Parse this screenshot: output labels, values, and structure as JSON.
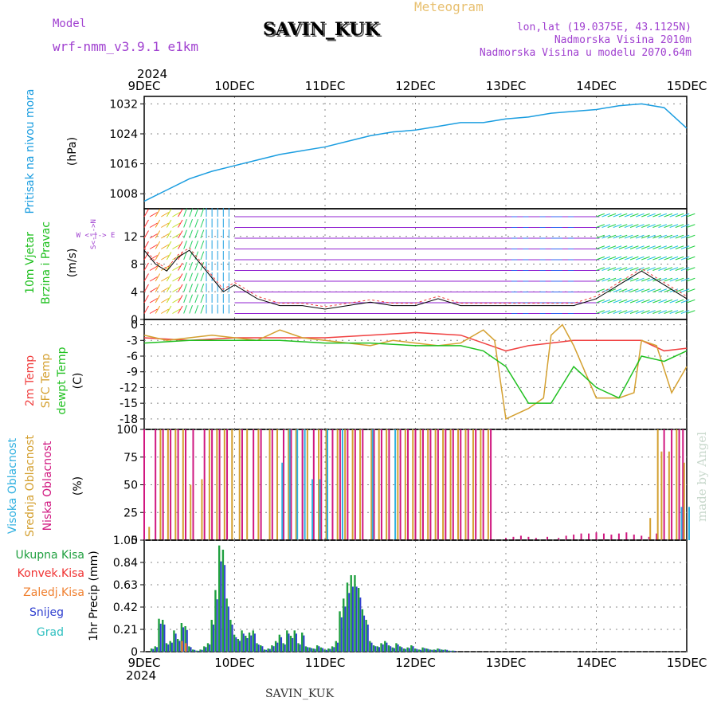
{
  "header": {
    "model_label": "Model",
    "model_name": "wrf-nmm_v3.9.1 e1km",
    "station": "SAVIN_KUK",
    "meteogram": "Meteogram",
    "lonlat": "lon,lat (19.0375E, 43.1125N)",
    "elevation": "Nadmorska Visina 2010m",
    "model_elevation": "Nadmorska Visina u modelu 2070.64m",
    "credit": "made by Angel",
    "footer_station": "SAVIN_KUK"
  },
  "time_axis": {
    "year": "2024",
    "ticks": [
      "9DEC",
      "10DEC",
      "11DEC",
      "12DEC",
      "13DEC",
      "14DEC",
      "15DEC"
    ]
  },
  "colors": {
    "pressure": "#1a9de0",
    "temp2m": "#f04040",
    "sfc_temp": "#d4a030",
    "dewpt": "#20c020",
    "high_cloud": "#30b0e0",
    "mid_cloud": "#d4a030",
    "low_cloud": "#d01880",
    "total_precip": "#20a040",
    "snow": "#3040d0",
    "conv_precip": "#f03030",
    "frozen_precip": "#f08030",
    "hail": "#30c0c0",
    "purple": "#a040d0"
  },
  "panels": {
    "pressure": {
      "label": "Pritisak na nivou mora",
      "unit": "(hPa)",
      "ticks": [
        "1008",
        "1016",
        "1024",
        "1032"
      ]
    },
    "wind": {
      "label1": "10m Vjetar",
      "label2": "Brzina i Pravac",
      "unit": "(m/s)",
      "ticks": [
        "0",
        "4",
        "8",
        "12"
      ],
      "compass": "W <-|-> E",
      "compass2": "S<-|->N"
    },
    "temp": {
      "label1": "2m Temp",
      "label2": "SFC Temp",
      "label3": "dewpt Temp",
      "unit": "(C)",
      "ticks": [
        "0",
        "-3",
        "-6",
        "-9",
        "-12",
        "-15",
        "-18"
      ]
    },
    "cloud": {
      "label1": "Visoka Oblacnost",
      "label2": "Srednja Oblacnost",
      "label3": "Niska Oblacnost",
      "unit": "(%)",
      "ticks": [
        "0",
        "25",
        "50",
        "75",
        "100"
      ]
    },
    "precip": {
      "unit": "1hr Precip (mm)",
      "ticks": [
        "0",
        "0.21",
        "0.42",
        "0.63",
        "0.84",
        "1.05"
      ],
      "legend": [
        "Ukupna Kisa",
        "Konvek.Kisa",
        "Zaledj.Kisa",
        "Snijeg",
        "Grad"
      ]
    }
  },
  "chart_data": [
    {
      "type": "line",
      "title": "Pritisak na nivou mora",
      "ylabel": "(hPa)",
      "x_unit": "hours from 9DEC 00",
      "ylim": [
        1004,
        1034
      ],
      "series": [
        {
          "name": "Pritisak na nivou mora",
          "x": [
            0,
            6,
            12,
            18,
            24,
            30,
            36,
            42,
            48,
            54,
            60,
            66,
            72,
            78,
            84,
            90,
            96,
            102,
            108,
            114,
            120,
            126,
            132,
            138,
            144
          ],
          "values": [
            1006,
            1009,
            1012,
            1014,
            1015.5,
            1017,
            1018.5,
            1019.5,
            1020.5,
            1022,
            1023.5,
            1024.5,
            1025,
            1026,
            1027,
            1027,
            1028,
            1028.5,
            1029.5,
            1030,
            1030.5,
            1031.5,
            1032,
            1031,
            1025.5
          ]
        }
      ]
    },
    {
      "type": "line",
      "title": "10m Vjetar Brzina i Pravac",
      "ylabel": "(m/s)",
      "x_unit": "hours from 9DEC 00",
      "ylim": [
        0,
        16
      ],
      "series": [
        {
          "name": "10m Vjetar",
          "x": [
            0,
            3,
            6,
            9,
            12,
            15,
            18,
            21,
            24,
            30,
            36,
            42,
            48,
            54,
            60,
            66,
            72,
            78,
            84,
            96,
            108,
            114,
            120,
            126,
            132,
            138,
            144
          ],
          "values": [
            10,
            8,
            7,
            9,
            10,
            8,
            6,
            4,
            5,
            3,
            2,
            2,
            1.5,
            2,
            2.5,
            2,
            2,
            3,
            2,
            2,
            2,
            2,
            3,
            5,
            7,
            5,
            3
          ]
        }
      ]
    },
    {
      "type": "line",
      "title": "Temperatura",
      "ylabel": "(C)",
      "x_unit": "hours from 9DEC 00",
      "ylim": [
        -20,
        1
      ],
      "series": [
        {
          "name": "2m Temp",
          "x": [
            0,
            12,
            24,
            36,
            48,
            60,
            72,
            84,
            90,
            96,
            102,
            108,
            114,
            120,
            126,
            132,
            138,
            144
          ],
          "values": [
            -2.5,
            -3,
            -2.5,
            -2.5,
            -2.5,
            -2,
            -1.5,
            -2,
            -3.5,
            -5,
            -4,
            -3.5,
            -3,
            -3,
            -3,
            -3,
            -5,
            -4.5
          ]
        },
        {
          "name": "SFC Temp",
          "x": [
            0,
            6,
            12,
            18,
            24,
            30,
            36,
            42,
            48,
            54,
            60,
            66,
            72,
            78,
            84,
            90,
            93,
            96,
            102,
            106,
            108,
            111,
            114,
            120,
            126,
            130,
            132,
            136,
            140,
            144
          ],
          "values": [
            -2,
            -3,
            -2.5,
            -2,
            -2.5,
            -3,
            -1,
            -2.5,
            -3,
            -3.5,
            -4,
            -3,
            -3.5,
            -4,
            -3.5,
            -1,
            -3,
            -18,
            -16,
            -14,
            -2,
            0,
            -4,
            -14,
            -14,
            -13,
            -3,
            -4,
            -13,
            -8
          ]
        },
        {
          "name": "dewpt Temp",
          "x": [
            0,
            12,
            24,
            36,
            48,
            60,
            72,
            84,
            90,
            96,
            102,
            108,
            114,
            120,
            126,
            132,
            138,
            144
          ],
          "values": [
            -3.5,
            -3,
            -3,
            -3,
            -3.5,
            -3.5,
            -4,
            -4,
            -5,
            -8,
            -15,
            -15,
            -8,
            -12,
            -14,
            -6,
            -7,
            -5
          ]
        }
      ]
    },
    {
      "type": "bar",
      "title": "Oblacnost",
      "ylabel": "(%)",
      "x_unit": "hours from 9DEC 00",
      "ylim": [
        0,
        100
      ],
      "series": [
        {
          "name": "Niska Oblacnost",
          "x": [
            0,
            3,
            5,
            7,
            9,
            11,
            13,
            16,
            18,
            20,
            22,
            26,
            29,
            31,
            34,
            37,
            39,
            42,
            45,
            47,
            50,
            52,
            54,
            56,
            58,
            61,
            63,
            65,
            68,
            70,
            72,
            74,
            76,
            78,
            80,
            82,
            84,
            86,
            88,
            90,
            92,
            96,
            98,
            100,
            102,
            104,
            107,
            110,
            112,
            114,
            116,
            118,
            120,
            122,
            124,
            126,
            128,
            130,
            132,
            134,
            136,
            138,
            140,
            142,
            143
          ],
          "values": [
            100,
            100,
            100,
            100,
            100,
            100,
            100,
            100,
            100,
            100,
            100,
            100,
            100,
            100,
            100,
            100,
            100,
            100,
            100,
            100,
            100,
            100,
            100,
            100,
            100,
            100,
            100,
            100,
            100,
            100,
            100,
            100,
            100,
            100,
            100,
            100,
            100,
            100,
            100,
            100,
            100,
            2,
            3,
            4,
            3,
            2,
            3,
            2,
            4,
            5,
            6,
            6,
            7,
            6,
            5,
            6,
            7,
            5,
            4,
            3,
            6,
            100,
            100,
            100,
            100
          ]
        },
        {
          "name": "Srednja Oblacnost",
          "x": [
            1,
            4,
            6,
            8,
            10,
            12,
            15,
            17,
            19,
            21,
            23,
            25,
            27,
            30,
            33,
            35,
            38,
            40,
            43,
            46,
            48,
            51,
            53,
            55,
            57,
            60,
            62,
            64,
            67,
            69,
            71,
            73,
            75,
            77,
            79,
            81,
            83,
            85,
            87,
            89,
            91,
            134,
            136,
            137,
            139,
            141,
            143
          ],
          "values": [
            12,
            100,
            100,
            100,
            100,
            50,
            55,
            100,
            100,
            100,
            100,
            100,
            100,
            100,
            100,
            100,
            100,
            100,
            100,
            100,
            100,
            100,
            100,
            100,
            100,
            100,
            100,
            100,
            100,
            100,
            100,
            100,
            100,
            100,
            100,
            100,
            100,
            100,
            100,
            100,
            100,
            20,
            100,
            80,
            80,
            100,
            70
          ]
        },
        {
          "name": "Visoka Oblacnost",
          "x": [
            36,
            38,
            40,
            42,
            44,
            46,
            48,
            52,
            60,
            66,
            142,
            144
          ],
          "values": [
            70,
            100,
            100,
            100,
            55,
            55,
            100,
            100,
            100,
            100,
            30,
            30
          ]
        }
      ]
    },
    {
      "type": "bar",
      "title": "1hr Precip",
      "ylabel": "1hr Precip (mm)",
      "x_unit": "hours from 9DEC 00",
      "ylim": [
        0,
        1.05
      ],
      "series": [
        {
          "name": "Ukupna Kisa",
          "x": [
            2,
            3,
            4,
            5,
            6,
            7,
            8,
            9,
            10,
            11,
            12,
            13,
            14,
            15,
            16,
            17,
            18,
            19,
            20,
            21,
            22,
            23,
            24,
            25,
            26,
            27,
            28,
            29,
            30,
            31,
            32,
            33,
            34,
            35,
            36,
            37,
            38,
            39,
            40,
            41,
            42,
            43,
            44,
            45,
            46,
            47,
            48,
            49,
            50,
            51,
            52,
            53,
            54,
            55,
            56,
            57,
            58,
            59,
            60,
            61,
            62,
            63,
            64,
            65,
            66,
            67,
            68,
            69,
            70,
            71,
            72,
            73,
            74,
            75,
            76,
            77,
            78,
            79,
            80,
            81,
            82
          ],
          "values": [
            0.03,
            0.05,
            0.31,
            0.3,
            0.08,
            0.1,
            0.2,
            0.12,
            0.27,
            0.24,
            0.05,
            0.02,
            0.01,
            0.02,
            0.05,
            0.08,
            0.3,
            0.58,
            1.0,
            0.96,
            0.5,
            0.3,
            0.16,
            0.12,
            0.2,
            0.15,
            0.18,
            0.2,
            0.08,
            0.06,
            0.02,
            0.03,
            0.06,
            0.1,
            0.16,
            0.08,
            0.2,
            0.15,
            0.2,
            0.08,
            0.18,
            0.05,
            0.04,
            0.03,
            0.06,
            0.04,
            0.02,
            0.03,
            0.05,
            0.1,
            0.38,
            0.5,
            0.65,
            0.72,
            0.72,
            0.6,
            0.4,
            0.3,
            0.1,
            0.06,
            0.05,
            0.08,
            0.1,
            0.06,
            0.04,
            0.08,
            0.05,
            0.03,
            0.04,
            0.06,
            0.03,
            0.02,
            0.04,
            0.03,
            0.02,
            0.02,
            0.03,
            0.02,
            0.02,
            0.01,
            0.01
          ]
        },
        {
          "name": "Konvek.Kisa",
          "x": [
            10,
            11
          ],
          "values": [
            0.1,
            0.08
          ]
        }
      ]
    }
  ]
}
